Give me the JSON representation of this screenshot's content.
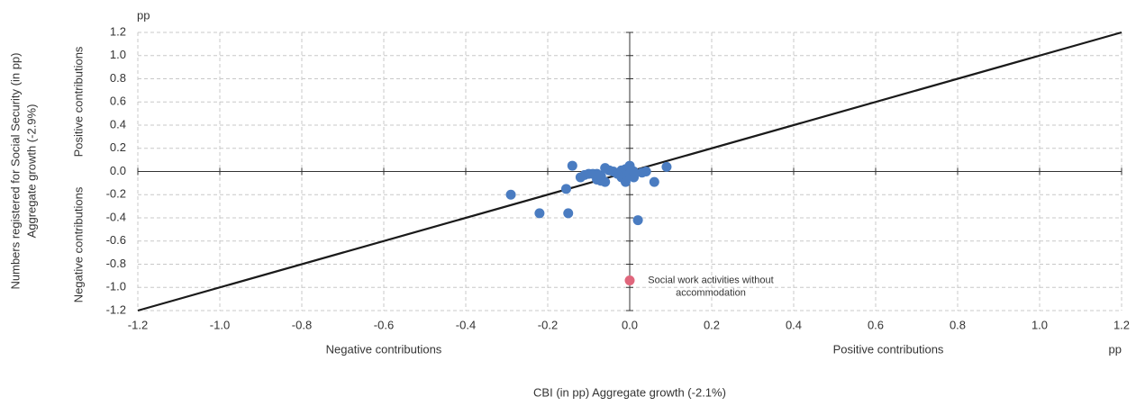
{
  "chart_data": {
    "type": "scatter",
    "y_unit": "pp",
    "x_unit": "pp",
    "y_axis_label": [
      "Numbers registered for Social Security (in pp)",
      "Aggregate growth (-2.9%)"
    ],
    "x_axis_label": "CBI (in pp) Aggregate growth (-2.1%)",
    "x_negative_label": "Negative contributions",
    "x_positive_label": "Positive contributions",
    "y_positive_label": "Positive contributions",
    "y_negative_label": "Negative contributions",
    "x": [
      -0.29,
      -0.22,
      -0.15,
      -0.155,
      -0.14,
      -0.12,
      -0.11,
      -0.1,
      -0.09,
      -0.08,
      -0.08,
      -0.07,
      -0.07,
      -0.06,
      -0.06,
      -0.05,
      -0.04,
      -0.03,
      -0.02,
      -0.02,
      -0.01,
      -0.01,
      0.0,
      0.0,
      0.005,
      0.01,
      0.01,
      0.02,
      0.03,
      0.04,
      0.06,
      0.09
    ],
    "values": [
      -0.2,
      -0.36,
      -0.36,
      -0.15,
      0.05,
      -0.05,
      -0.03,
      -0.02,
      -0.02,
      -0.02,
      -0.07,
      -0.08,
      -0.04,
      0.03,
      -0.09,
      0.01,
      0.0,
      -0.02,
      -0.05,
      0.01,
      -0.09,
      0.02,
      0.05,
      -0.02,
      0.01,
      -0.05,
      0.0,
      -0.42,
      -0.01,
      0.0,
      -0.09,
      0.04
    ],
    "color": "#4a7cc1",
    "highlight": {
      "x": 0.0,
      "y": -0.94,
      "color": "#e0667c",
      "label_lines": [
        "Social work activities without",
        "accommodation"
      ]
    },
    "reference_line": {
      "x": [
        -1.2,
        1.2
      ],
      "y": [
        -1.2,
        1.2
      ],
      "color": "#1a1a1a"
    },
    "xlim": [
      -1.2,
      1.2
    ],
    "ylim": [
      -1.2,
      1.2
    ],
    "xticks": [
      -1.2,
      {
        "value": -1,
        "label": "-1.0"
      },
      -0.8,
      -0.6,
      -0.4,
      -0.2,
      {
        "value": 0,
        "label": "0.0"
      },
      0.2,
      0.4,
      0.6,
      0.8,
      {
        "value": 1,
        "label": "1.0"
      },
      1.2
    ],
    "yticks": [
      -1.2,
      {
        "value": -1,
        "label": "-1.0"
      },
      -0.8,
      -0.6,
      -0.4,
      -0.2,
      {
        "value": 0,
        "label": "0.0"
      },
      0.2,
      0.4,
      0.6,
      0.8,
      {
        "value": 1,
        "label": "1.0"
      },
      1.2
    ],
    "grid": true
  }
}
